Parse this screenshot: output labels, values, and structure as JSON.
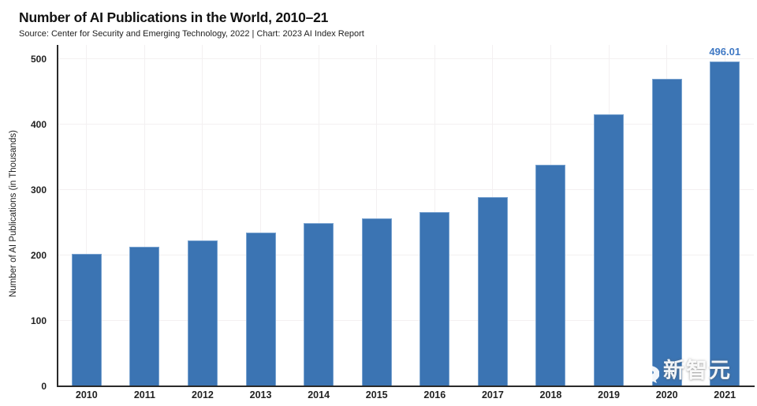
{
  "header": {
    "title": "Number of AI Publications in the World, 2010–21",
    "subtitle": "Source: Center for Security and Emerging Technology, 2022 | Chart: 2023 AI Index Report"
  },
  "chart_data": {
    "type": "bar",
    "title": "Number of AI Publications in the World, 2010–21",
    "subtitle": "Source: Center for Security and Emerging Technology, 2022 | Chart: 2023 AI Index Report",
    "categories": [
      "2010",
      "2011",
      "2012",
      "2013",
      "2014",
      "2015",
      "2016",
      "2017",
      "2018",
      "2019",
      "2020",
      "2021"
    ],
    "values": [
      202,
      213,
      223,
      235,
      250,
      257,
      266,
      289,
      339,
      416,
      470,
      496.01
    ],
    "xlabel": "",
    "ylabel": "Number of AI Publications (in Thousands)",
    "yticks": [
      0,
      100,
      200,
      300,
      400,
      500
    ],
    "ylim": [
      0,
      522
    ],
    "grid": true,
    "legend": false,
    "data_labels": [
      {
        "category": "2021",
        "text": "496.01"
      }
    ]
  },
  "colors": {
    "bar": "#3b74b3",
    "axis": "#2a2a2a",
    "grid": "#f3f0f1",
    "tick_text": "#222222",
    "data_label": "#4079c4"
  },
  "watermark": {
    "icon": "wechat-icon",
    "text": "新智元"
  }
}
